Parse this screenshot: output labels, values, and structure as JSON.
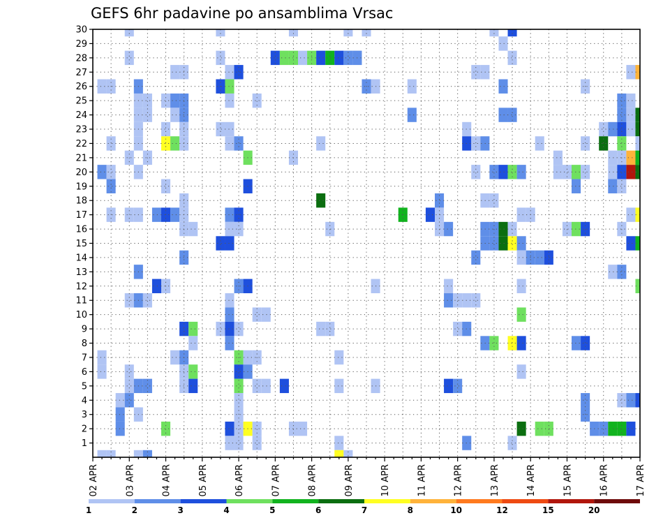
{
  "chart_data": {
    "type": "heatmap",
    "title": "GEFS 6hr padavine po ansamblima Vrsac",
    "xlabel": "",
    "ylabel": "",
    "x_tick_labels": [
      "02 APR",
      "03 APR",
      "04 APR",
      "05 APR",
      "06 APR",
      "07 APR",
      "08 APR",
      "09 APR",
      "10 APR",
      "11 APR",
      "12 APR",
      "13 APR",
      "14 APR",
      "15 APR",
      "16 APR",
      "17 APR"
    ],
    "y_tick_labels": [
      "1",
      "2",
      "3",
      "4",
      "5",
      "6",
      "7",
      "8",
      "9",
      "10",
      "11",
      "12",
      "13",
      "14",
      "15",
      "16",
      "17",
      "18",
      "19",
      "20",
      "21",
      "22",
      "23",
      "24",
      "25",
      "26",
      "27",
      "28",
      "29",
      "30"
    ],
    "y_range": [
      0,
      30
    ],
    "x_step_hours": 6,
    "steps_per_day": 4,
    "time_steps": 61,
    "grid": true,
    "grid_style": "dotted",
    "legend_placement": "bottom",
    "legend_labels": [
      "1",
      "2",
      "3",
      "4",
      "5",
      "6",
      "7",
      "8",
      "10",
      "12",
      "15",
      "20"
    ],
    "legend_colors": [
      "#b0c4f4",
      "#5f8ee8",
      "#1e4fdd",
      "#6fe05f",
      "#11b31e",
      "#0b6e10",
      "#ffff22",
      "#ffb33a",
      "#ff7a1f",
      "#ee4a12",
      "#b1160c",
      "#6e0a0a"
    ],
    "cells": [
      {
        "m": 30,
        "t": 4,
        "v": 1.5
      },
      {
        "m": 30,
        "t": 14,
        "v": 1.5
      },
      {
        "m": 30,
        "t": 22,
        "v": 1.5
      },
      {
        "m": 30,
        "t": 28,
        "v": 1.5
      },
      {
        "m": 30,
        "t": 30,
        "v": 1.5
      },
      {
        "m": 30,
        "t": 44,
        "v": 1.5
      },
      {
        "m": 30,
        "t": 46,
        "v": 3.5
      },
      {
        "m": 29,
        "t": 45,
        "v": 1.5
      },
      {
        "m": 28,
        "t": 4,
        "v": 1.5
      },
      {
        "m": 28,
        "t": 14,
        "v": 1.5
      },
      {
        "m": 28,
        "t": 20,
        "v": 3.5
      },
      {
        "m": 28,
        "t": 21,
        "v": 4.5
      },
      {
        "m": 28,
        "t": 22,
        "v": 4.5
      },
      {
        "m": 28,
        "t": 23,
        "v": 1.5
      },
      {
        "m": 28,
        "t": 24,
        "v": 4.5
      },
      {
        "m": 28,
        "t": 25,
        "v": 3.5
      },
      {
        "m": 28,
        "t": 26,
        "v": 5.5
      },
      {
        "m": 28,
        "t": 27,
        "v": 3.5
      },
      {
        "m": 28,
        "t": 28,
        "v": 2.5
      },
      {
        "m": 28,
        "t": 29,
        "v": 2.5
      },
      {
        "m": 28,
        "t": 46,
        "v": 1.5
      },
      {
        "m": 27,
        "t": 9,
        "v": 1.5
      },
      {
        "m": 27,
        "t": 10,
        "v": 1.5
      },
      {
        "m": 27,
        "t": 15,
        "v": 1.5
      },
      {
        "m": 27,
        "t": 16,
        "v": 3.5
      },
      {
        "m": 27,
        "t": 42,
        "v": 1.5
      },
      {
        "m": 27,
        "t": 43,
        "v": 1.5
      },
      {
        "m": 27,
        "t": 59,
        "v": 1.5
      },
      {
        "m": 27,
        "t": 60,
        "v": 8.5
      },
      {
        "m": 26,
        "t": 1,
        "v": 1.5
      },
      {
        "m": 26,
        "t": 2,
        "v": 1.5
      },
      {
        "m": 26,
        "t": 5,
        "v": 2.5
      },
      {
        "m": 26,
        "t": 14,
        "v": 3.5
      },
      {
        "m": 26,
        "t": 15,
        "v": 4.5
      },
      {
        "m": 26,
        "t": 30,
        "v": 2.5
      },
      {
        "m": 26,
        "t": 31,
        "v": 1.5
      },
      {
        "m": 26,
        "t": 35,
        "v": 1.5
      },
      {
        "m": 26,
        "t": 45,
        "v": 2.5
      },
      {
        "m": 26,
        "t": 54,
        "v": 1.5
      },
      {
        "m": 25,
        "t": 5,
        "v": 1.5
      },
      {
        "m": 25,
        "t": 6,
        "v": 1.5
      },
      {
        "m": 25,
        "t": 8,
        "v": 1.5
      },
      {
        "m": 25,
        "t": 9,
        "v": 2.5
      },
      {
        "m": 25,
        "t": 10,
        "v": 2.5
      },
      {
        "m": 25,
        "t": 15,
        "v": 1.5
      },
      {
        "m": 25,
        "t": 18,
        "v": 1.5
      },
      {
        "m": 25,
        "t": 58,
        "v": 2.5
      },
      {
        "m": 25,
        "t": 59,
        "v": 1.5
      },
      {
        "m": 24,
        "t": 5,
        "v": 1.5
      },
      {
        "m": 24,
        "t": 6,
        "v": 1.5
      },
      {
        "m": 24,
        "t": 9,
        "v": 1.5
      },
      {
        "m": 24,
        "t": 10,
        "v": 2.5
      },
      {
        "m": 24,
        "t": 35,
        "v": 2.5
      },
      {
        "m": 24,
        "t": 45,
        "v": 2.5
      },
      {
        "m": 24,
        "t": 46,
        "v": 2.5
      },
      {
        "m": 24,
        "t": 58,
        "v": 2.5
      },
      {
        "m": 24,
        "t": 59,
        "v": 1.5
      },
      {
        "m": 24,
        "t": 60,
        "v": 6.5
      },
      {
        "m": 23,
        "t": 5,
        "v": 1.5
      },
      {
        "m": 23,
        "t": 8,
        "v": 1.5
      },
      {
        "m": 23,
        "t": 10,
        "v": 1.5
      },
      {
        "m": 23,
        "t": 14,
        "v": 1.5
      },
      {
        "m": 23,
        "t": 15,
        "v": 1.5
      },
      {
        "m": 23,
        "t": 41,
        "v": 1.5
      },
      {
        "m": 23,
        "t": 56,
        "v": 1.5
      },
      {
        "m": 23,
        "t": 57,
        "v": 2.5
      },
      {
        "m": 23,
        "t": 58,
        "v": 3.5
      },
      {
        "m": 23,
        "t": 59,
        "v": 1.5
      },
      {
        "m": 23,
        "t": 60,
        "v": 6.5
      },
      {
        "m": 22,
        "t": 2,
        "v": 1.5
      },
      {
        "m": 22,
        "t": 5,
        "v": 1.5
      },
      {
        "m": 22,
        "t": 8,
        "v": 7.5
      },
      {
        "m": 22,
        "t": 9,
        "v": 4.5
      },
      {
        "m": 22,
        "t": 10,
        "v": 1.5
      },
      {
        "m": 22,
        "t": 15,
        "v": 1.5
      },
      {
        "m": 22,
        "t": 16,
        "v": 2.5
      },
      {
        "m": 22,
        "t": 25,
        "v": 1.5
      },
      {
        "m": 22,
        "t": 41,
        "v": 3.5
      },
      {
        "m": 22,
        "t": 42,
        "v": 1.5
      },
      {
        "m": 22,
        "t": 43,
        "v": 2.5
      },
      {
        "m": 22,
        "t": 49,
        "v": 1.5
      },
      {
        "m": 22,
        "t": 54,
        "v": 1.5
      },
      {
        "m": 22,
        "t": 56,
        "v": 6.5
      },
      {
        "m": 22,
        "t": 58,
        "v": 4.5
      },
      {
        "m": 22,
        "t": 60,
        "v": 1.5
      },
      {
        "m": 21,
        "t": 4,
        "v": 1.5
      },
      {
        "m": 21,
        "t": 6,
        "v": 1.5
      },
      {
        "m": 21,
        "t": 17,
        "v": 4.5
      },
      {
        "m": 21,
        "t": 22,
        "v": 1.5
      },
      {
        "m": 21,
        "t": 51,
        "v": 1.5
      },
      {
        "m": 21,
        "t": 57,
        "v": 1.5
      },
      {
        "m": 21,
        "t": 58,
        "v": 1.5
      },
      {
        "m": 21,
        "t": 59,
        "v": 9
      },
      {
        "m": 21,
        "t": 60,
        "v": 5.5
      },
      {
        "m": 20,
        "t": 1,
        "v": 2.5
      },
      {
        "m": 20,
        "t": 2,
        "v": 1.5
      },
      {
        "m": 20,
        "t": 5,
        "v": 1.5
      },
      {
        "m": 20,
        "t": 42,
        "v": 1.5
      },
      {
        "m": 20,
        "t": 44,
        "v": 2.5
      },
      {
        "m": 20,
        "t": 45,
        "v": 3.5
      },
      {
        "m": 20,
        "t": 46,
        "v": 4.5
      },
      {
        "m": 20,
        "t": 47,
        "v": 2.5
      },
      {
        "m": 20,
        "t": 51,
        "v": 1.5
      },
      {
        "m": 20,
        "t": 52,
        "v": 1.5
      },
      {
        "m": 20,
        "t": 53,
        "v": 4.5
      },
      {
        "m": 20,
        "t": 54,
        "v": 1.5
      },
      {
        "m": 20,
        "t": 57,
        "v": 1.5
      },
      {
        "m": 20,
        "t": 58,
        "v": 3.5
      },
      {
        "m": 20,
        "t": 59,
        "v": 17
      },
      {
        "m": 20,
        "t": 60,
        "v": 6.5
      },
      {
        "m": 19,
        "t": 2,
        "v": 2.5
      },
      {
        "m": 19,
        "t": 8,
        "v": 1.5
      },
      {
        "m": 19,
        "t": 17,
        "v": 3.5
      },
      {
        "m": 19,
        "t": 53,
        "v": 2.5
      },
      {
        "m": 19,
        "t": 57,
        "v": 2.5
      },
      {
        "m": 19,
        "t": 58,
        "v": 1.5
      },
      {
        "m": 18,
        "t": 10,
        "v": 1.5
      },
      {
        "m": 18,
        "t": 25,
        "v": 6.5
      },
      {
        "m": 18,
        "t": 38,
        "v": 2.5
      },
      {
        "m": 18,
        "t": 43,
        "v": 1.5
      },
      {
        "m": 18,
        "t": 44,
        "v": 1.5
      },
      {
        "m": 17,
        "t": 2,
        "v": 1.5
      },
      {
        "m": 17,
        "t": 4,
        "v": 1.5
      },
      {
        "m": 17,
        "t": 5,
        "v": 1.5
      },
      {
        "m": 17,
        "t": 7,
        "v": 2.5
      },
      {
        "m": 17,
        "t": 8,
        "v": 3.5
      },
      {
        "m": 17,
        "t": 9,
        "v": 2.5
      },
      {
        "m": 17,
        "t": 10,
        "v": 1.5
      },
      {
        "m": 17,
        "t": 15,
        "v": 2.5
      },
      {
        "m": 17,
        "t": 16,
        "v": 3.5
      },
      {
        "m": 17,
        "t": 34,
        "v": 5.5
      },
      {
        "m": 17,
        "t": 37,
        "v": 3.5
      },
      {
        "m": 17,
        "t": 38,
        "v": 1.5
      },
      {
        "m": 17,
        "t": 47,
        "v": 1.5
      },
      {
        "m": 17,
        "t": 48,
        "v": 1.5
      },
      {
        "m": 17,
        "t": 59,
        "v": 1.5
      },
      {
        "m": 17,
        "t": 60,
        "v": 7.5
      },
      {
        "m": 16,
        "t": 10,
        "v": 1.5
      },
      {
        "m": 16,
        "t": 11,
        "v": 1.5
      },
      {
        "m": 16,
        "t": 15,
        "v": 1.5
      },
      {
        "m": 16,
        "t": 16,
        "v": 1.5
      },
      {
        "m": 16,
        "t": 26,
        "v": 1.5
      },
      {
        "m": 16,
        "t": 38,
        "v": 1.5
      },
      {
        "m": 16,
        "t": 39,
        "v": 2.5
      },
      {
        "m": 16,
        "t": 43,
        "v": 2.5
      },
      {
        "m": 16,
        "t": 44,
        "v": 2.5
      },
      {
        "m": 16,
        "t": 45,
        "v": 6.5
      },
      {
        "m": 16,
        "t": 46,
        "v": 1.5
      },
      {
        "m": 16,
        "t": 52,
        "v": 1.5
      },
      {
        "m": 16,
        "t": 53,
        "v": 4.5
      },
      {
        "m": 16,
        "t": 54,
        "v": 3.5
      },
      {
        "m": 16,
        "t": 58,
        "v": 1.5
      },
      {
        "m": 15,
        "t": 14,
        "v": 3.5
      },
      {
        "m": 15,
        "t": 15,
        "v": 3.5
      },
      {
        "m": 15,
        "t": 43,
        "v": 2.5
      },
      {
        "m": 15,
        "t": 44,
        "v": 2.5
      },
      {
        "m": 15,
        "t": 45,
        "v": 6.5
      },
      {
        "m": 15,
        "t": 46,
        "v": 7.5
      },
      {
        "m": 15,
        "t": 47,
        "v": 2.5
      },
      {
        "m": 15,
        "t": 59,
        "v": 3.5
      },
      {
        "m": 15,
        "t": 60,
        "v": 5.5
      },
      {
        "m": 14,
        "t": 10,
        "v": 2.5
      },
      {
        "m": 14,
        "t": 42,
        "v": 2.5
      },
      {
        "m": 14,
        "t": 47,
        "v": 1.5
      },
      {
        "m": 14,
        "t": 48,
        "v": 2.5
      },
      {
        "m": 14,
        "t": 49,
        "v": 2.5
      },
      {
        "m": 14,
        "t": 50,
        "v": 3.5
      },
      {
        "m": 13,
        "t": 5,
        "v": 2.5
      },
      {
        "m": 13,
        "t": 57,
        "v": 1.5
      },
      {
        "m": 13,
        "t": 58,
        "v": 2.5
      },
      {
        "m": 12,
        "t": 7,
        "v": 3.5
      },
      {
        "m": 12,
        "t": 8,
        "v": 1.5
      },
      {
        "m": 12,
        "t": 16,
        "v": 2.5
      },
      {
        "m": 12,
        "t": 17,
        "v": 3.5
      },
      {
        "m": 12,
        "t": 31,
        "v": 1.5
      },
      {
        "m": 12,
        "t": 39,
        "v": 1.5
      },
      {
        "m": 12,
        "t": 47,
        "v": 1.5
      },
      {
        "m": 12,
        "t": 60,
        "v": 4.5
      },
      {
        "m": 11,
        "t": 4,
        "v": 1.5
      },
      {
        "m": 11,
        "t": 5,
        "v": 2.5
      },
      {
        "m": 11,
        "t": 6,
        "v": 1.5
      },
      {
        "m": 11,
        "t": 15,
        "v": 1.5
      },
      {
        "m": 11,
        "t": 39,
        "v": 2.5
      },
      {
        "m": 11,
        "t": 40,
        "v": 1.5
      },
      {
        "m": 11,
        "t": 41,
        "v": 1.5
      },
      {
        "m": 11,
        "t": 42,
        "v": 1.5
      },
      {
        "m": 10,
        "t": 15,
        "v": 2.5
      },
      {
        "m": 10,
        "t": 18,
        "v": 1.5
      },
      {
        "m": 10,
        "t": 19,
        "v": 1.5
      },
      {
        "m": 10,
        "t": 47,
        "v": 4.5
      },
      {
        "m": 9,
        "t": 10,
        "v": 3.5
      },
      {
        "m": 9,
        "t": 11,
        "v": 4.5
      },
      {
        "m": 9,
        "t": 14,
        "v": 1.5
      },
      {
        "m": 9,
        "t": 15,
        "v": 3.5
      },
      {
        "m": 9,
        "t": 16,
        "v": 1.5
      },
      {
        "m": 9,
        "t": 25,
        "v": 1.5
      },
      {
        "m": 9,
        "t": 26,
        "v": 1.5
      },
      {
        "m": 9,
        "t": 40,
        "v": 1.5
      },
      {
        "m": 9,
        "t": 41,
        "v": 2.5
      },
      {
        "m": 8,
        "t": 11,
        "v": 1.5
      },
      {
        "m": 8,
        "t": 15,
        "v": 2.5
      },
      {
        "m": 8,
        "t": 43,
        "v": 2.5
      },
      {
        "m": 8,
        "t": 44,
        "v": 4.5
      },
      {
        "m": 8,
        "t": 46,
        "v": 7.5
      },
      {
        "m": 8,
        "t": 47,
        "v": 3.5
      },
      {
        "m": 8,
        "t": 53,
        "v": 2.5
      },
      {
        "m": 8,
        "t": 54,
        "v": 3.5
      },
      {
        "m": 7,
        "t": 1,
        "v": 1.5
      },
      {
        "m": 7,
        "t": 9,
        "v": 1.5
      },
      {
        "m": 7,
        "t": 10,
        "v": 2.5
      },
      {
        "m": 7,
        "t": 16,
        "v": 4.5
      },
      {
        "m": 7,
        "t": 17,
        "v": 1.5
      },
      {
        "m": 7,
        "t": 18,
        "v": 1.5
      },
      {
        "m": 7,
        "t": 27,
        "v": 1.5
      },
      {
        "m": 6,
        "t": 1,
        "v": 1.5
      },
      {
        "m": 6,
        "t": 4,
        "v": 1.5
      },
      {
        "m": 6,
        "t": 10,
        "v": 1.5
      },
      {
        "m": 6,
        "t": 11,
        "v": 4.5
      },
      {
        "m": 6,
        "t": 16,
        "v": 3.5
      },
      {
        "m": 6,
        "t": 17,
        "v": 2.5
      },
      {
        "m": 6,
        "t": 47,
        "v": 1.5
      },
      {
        "m": 5,
        "t": 4,
        "v": 1.5
      },
      {
        "m": 5,
        "t": 5,
        "v": 2.5
      },
      {
        "m": 5,
        "t": 6,
        "v": 2.5
      },
      {
        "m": 5,
        "t": 10,
        "v": 1.5
      },
      {
        "m": 5,
        "t": 11,
        "v": 3.5
      },
      {
        "m": 5,
        "t": 16,
        "v": 4.5
      },
      {
        "m": 5,
        "t": 18,
        "v": 1.5
      },
      {
        "m": 5,
        "t": 19,
        "v": 1.5
      },
      {
        "m": 5,
        "t": 21,
        "v": 3.5
      },
      {
        "m": 5,
        "t": 27,
        "v": 1.5
      },
      {
        "m": 5,
        "t": 31,
        "v": 1.5
      },
      {
        "m": 5,
        "t": 39,
        "v": 3.5
      },
      {
        "m": 5,
        "t": 40,
        "v": 2.5
      },
      {
        "m": 4,
        "t": 3,
        "v": 1.5
      },
      {
        "m": 4,
        "t": 4,
        "v": 2.5
      },
      {
        "m": 4,
        "t": 16,
        "v": 1.5
      },
      {
        "m": 4,
        "t": 54,
        "v": 2.5
      },
      {
        "m": 4,
        "t": 58,
        "v": 1.5
      },
      {
        "m": 4,
        "t": 59,
        "v": 2.5
      },
      {
        "m": 4,
        "t": 60,
        "v": 3.5
      },
      {
        "m": 3,
        "t": 3,
        "v": 2.5
      },
      {
        "m": 3,
        "t": 5,
        "v": 1.5
      },
      {
        "m": 3,
        "t": 16,
        "v": 1.5
      },
      {
        "m": 3,
        "t": 54,
        "v": 2.5
      },
      {
        "m": 2,
        "t": 3,
        "v": 2.5
      },
      {
        "m": 2,
        "t": 8,
        "v": 4.5
      },
      {
        "m": 2,
        "t": 15,
        "v": 3.5
      },
      {
        "m": 2,
        "t": 16,
        "v": 1.5
      },
      {
        "m": 2,
        "t": 17,
        "v": 7.5
      },
      {
        "m": 2,
        "t": 18,
        "v": 1.5
      },
      {
        "m": 2,
        "t": 22,
        "v": 1.5
      },
      {
        "m": 2,
        "t": 23,
        "v": 1.5
      },
      {
        "m": 2,
        "t": 47,
        "v": 6.5
      },
      {
        "m": 2,
        "t": 49,
        "v": 4.5
      },
      {
        "m": 2,
        "t": 50,
        "v": 4.5
      },
      {
        "m": 2,
        "t": 55,
        "v": 2.5
      },
      {
        "m": 2,
        "t": 56,
        "v": 2.5
      },
      {
        "m": 2,
        "t": 57,
        "v": 5.5
      },
      {
        "m": 2,
        "t": 58,
        "v": 5.5
      },
      {
        "m": 2,
        "t": 59,
        "v": 3.5
      },
      {
        "m": 1,
        "t": 15,
        "v": 1.5
      },
      {
        "m": 1,
        "t": 16,
        "v": 1.5
      },
      {
        "m": 1,
        "t": 18,
        "v": 1.5
      },
      {
        "m": 1,
        "t": 27,
        "v": 1.5
      },
      {
        "m": 1,
        "t": 41,
        "v": 2.5
      },
      {
        "m": 1,
        "t": 46,
        "v": 1.5
      },
      {
        "m": 0,
        "t": 1,
        "v": 1.5
      },
      {
        "m": 0,
        "t": 2,
        "v": 1.5
      },
      {
        "m": 0,
        "t": 5,
        "v": 1.5
      },
      {
        "m": 0,
        "t": 6,
        "v": 2.5
      },
      {
        "m": 0,
        "t": 27,
        "v": 7.5
      },
      {
        "m": 0,
        "t": 28,
        "v": 1.5
      }
    ]
  }
}
